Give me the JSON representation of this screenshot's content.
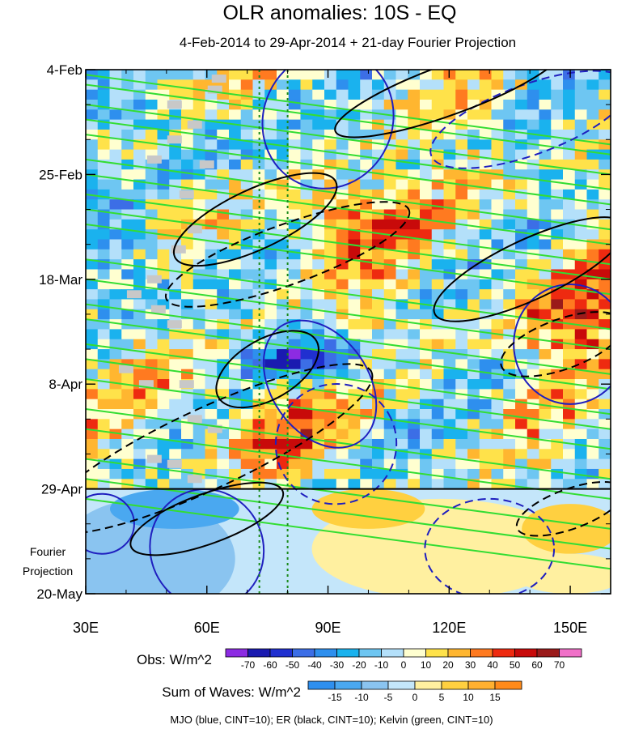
{
  "chart_data": {
    "type": "heatmap",
    "title": "OLR anomalies: 10S - EQ",
    "subtitle": "4-Feb-2014 to 29-Apr-2014 + 21-day Fourier Projection",
    "x_axis": {
      "ticks": [
        30,
        60,
        90,
        120,
        150
      ],
      "tick_labels": [
        "30E",
        "60E",
        "90E",
        "120E",
        "150E"
      ],
      "range": [
        30,
        160
      ]
    },
    "y_axis": {
      "ticks": [
        "4-Feb",
        "25-Feb",
        "18-Mar",
        "8-Apr",
        "29-Apr",
        "20-May"
      ],
      "reversed": true
    },
    "projection_start": "29-Apr",
    "projection_label": [
      "Fourier",
      "Projection"
    ],
    "reference_longitudes": [
      73,
      80
    ],
    "obs_colorbar": {
      "label": "Obs: W/m^2",
      "ticks": [
        "-70",
        "-60",
        "-50",
        "-40",
        "-30",
        "-20",
        "-10",
        "0",
        "10",
        "20",
        "30",
        "40",
        "50",
        "60",
        "70"
      ],
      "colors": [
        "#8c2be2",
        "#1a1ab0",
        "#2030d0",
        "#3c6ee6",
        "#2e8fee",
        "#1ab2ee",
        "#6ec6f2",
        "#b4e0fa",
        "#ffffd0",
        "#ffe24a",
        "#ffb630",
        "#ff7a20",
        "#ee2a10",
        "#c80a0a",
        "#9a1a1a",
        "#f070c8"
      ]
    },
    "waves_colorbar": {
      "label": "Sum of Waves: W/m^2",
      "ticks": [
        "-15",
        "-10",
        "-5",
        "0",
        "5",
        "10",
        "15"
      ],
      "colors": [
        "#2e8fee",
        "#4aa8f0",
        "#8ac4f0",
        "#c4e6fa",
        "#fff0a0",
        "#ffd040",
        "#ffb030",
        "#ff8a1a"
      ]
    },
    "legend": "MJO (blue, CINT=10); ER (black, CINT=10); Kelvin (green, CINT=10)",
    "series": [
      {
        "name": "MJO",
        "color": "#1f1fbf",
        "cint": 10
      },
      {
        "name": "ER",
        "color": "#000000",
        "cint": 10
      },
      {
        "name": "Kelvin",
        "color": "#33dd33",
        "cint": 10
      }
    ]
  }
}
